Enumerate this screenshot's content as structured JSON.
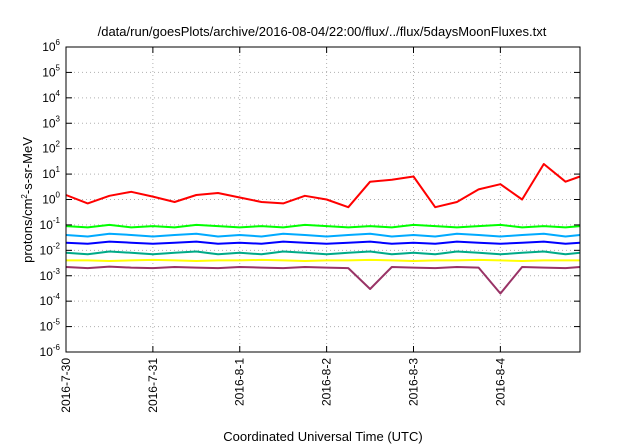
{
  "chart_data": {
    "type": "line",
    "title": "/data/run/goesPlots/archive/2016-08-04/22:00/flux/../flux/5daysMoonFluxes.txt",
    "xlabel": "Coordinated Universal Time (UTC)",
    "ylabel": {
      "pre": "protons/cm",
      "sup": "2",
      "post": "-s-sr-MeV"
    },
    "x_ticks": [
      "2016-7-30",
      "2016-7-31",
      "2016-8-1",
      "2016-8-2",
      "2016-8-3",
      "2016-8-4"
    ],
    "xlim": [
      "2016-7-30 00:00",
      "2016-8-4 22:00"
    ],
    "y_scale": "log",
    "y_ticks": [
      {
        "base": "10",
        "exp": "-6"
      },
      {
        "base": "10",
        "exp": "-5"
      },
      {
        "base": "10",
        "exp": "-4"
      },
      {
        "base": "10",
        "exp": "-3"
      },
      {
        "base": "10",
        "exp": "-2"
      },
      {
        "base": "10",
        "exp": "-1"
      },
      {
        "base": "10",
        "exp": "0"
      },
      {
        "base": "10",
        "exp": "1"
      },
      {
        "base": "10",
        "exp": "2"
      },
      {
        "base": "10",
        "exp": "3"
      },
      {
        "base": "10",
        "exp": "4"
      },
      {
        "base": "10",
        "exp": "5"
      },
      {
        "base": "10",
        "exp": "6"
      }
    ],
    "ylim": [
      1e-06,
      1000000.0
    ],
    "grid": true,
    "x": [
      "2016-7-30 00:00",
      "2016-7-30 06:00",
      "2016-7-30 12:00",
      "2016-7-30 18:00",
      "2016-7-31 00:00",
      "2016-7-31 06:00",
      "2016-7-31 12:00",
      "2016-7-31 18:00",
      "2016-8-1 00:00",
      "2016-8-1 06:00",
      "2016-8-1 12:00",
      "2016-8-1 18:00",
      "2016-8-2 00:00",
      "2016-8-2 06:00",
      "2016-8-2 12:00",
      "2016-8-2 18:00",
      "2016-8-3 00:00",
      "2016-8-3 06:00",
      "2016-8-3 12:00",
      "2016-8-3 18:00",
      "2016-8-4 00:00",
      "2016-8-4 06:00",
      "2016-8-4 12:00",
      "2016-8-4 18:00",
      "2016-8-4 22:00"
    ],
    "series": [
      {
        "color": "#ff0000",
        "values": [
          1.5,
          0.7,
          1.4,
          2.0,
          1.3,
          0.8,
          1.5,
          1.8,
          1.2,
          0.8,
          0.7,
          1.4,
          1.0,
          0.5,
          5.0,
          6.0,
          8.0,
          0.5,
          0.8,
          2.5,
          4.0,
          1.0,
          25,
          5.0,
          8.0
        ]
      },
      {
        "color": "#00ff00",
        "values": [
          0.09,
          0.08,
          0.1,
          0.08,
          0.09,
          0.08,
          0.1,
          0.09,
          0.08,
          0.09,
          0.08,
          0.1,
          0.09,
          0.08,
          0.09,
          0.08,
          0.1,
          0.09,
          0.08,
          0.09,
          0.1,
          0.08,
          0.09,
          0.08,
          0.09
        ]
      },
      {
        "color": "#00aaff",
        "values": [
          0.04,
          0.035,
          0.045,
          0.04,
          0.035,
          0.04,
          0.045,
          0.035,
          0.04,
          0.035,
          0.045,
          0.04,
          0.035,
          0.04,
          0.045,
          0.035,
          0.04,
          0.035,
          0.045,
          0.04,
          0.035,
          0.04,
          0.045,
          0.035,
          0.04
        ]
      },
      {
        "color": "#0000ff",
        "values": [
          0.02,
          0.018,
          0.022,
          0.02,
          0.018,
          0.02,
          0.022,
          0.018,
          0.02,
          0.018,
          0.022,
          0.02,
          0.018,
          0.02,
          0.022,
          0.018,
          0.02,
          0.018,
          0.022,
          0.02,
          0.018,
          0.02,
          0.022,
          0.018,
          0.02
        ]
      },
      {
        "color": "#00aa88",
        "values": [
          0.008,
          0.007,
          0.009,
          0.008,
          0.007,
          0.008,
          0.009,
          0.007,
          0.008,
          0.007,
          0.009,
          0.008,
          0.007,
          0.008,
          0.009,
          0.007,
          0.008,
          0.007,
          0.009,
          0.008,
          0.007,
          0.008,
          0.009,
          0.007,
          0.008
        ]
      },
      {
        "color": "#ffff00",
        "values": [
          0.004,
          0.004,
          0.0038,
          0.004,
          0.0042,
          0.004,
          0.0038,
          0.004,
          0.004,
          0.0042,
          0.004,
          0.0038,
          0.004,
          0.004,
          0.0042,
          0.004,
          0.0038,
          0.004,
          0.004,
          0.0042,
          0.004,
          0.0038,
          0.004,
          0.004,
          0.004
        ]
      },
      {
        "color": "#993366",
        "values": [
          0.0022,
          0.002,
          0.0023,
          0.0021,
          0.002,
          0.0022,
          0.0021,
          0.002,
          0.0022,
          0.0021,
          0.002,
          0.0022,
          0.0021,
          0.002,
          0.0003,
          0.0022,
          0.0021,
          0.002,
          0.0022,
          0.0021,
          0.0002,
          0.0022,
          0.0021,
          0.002,
          0.0022
        ]
      }
    ]
  }
}
